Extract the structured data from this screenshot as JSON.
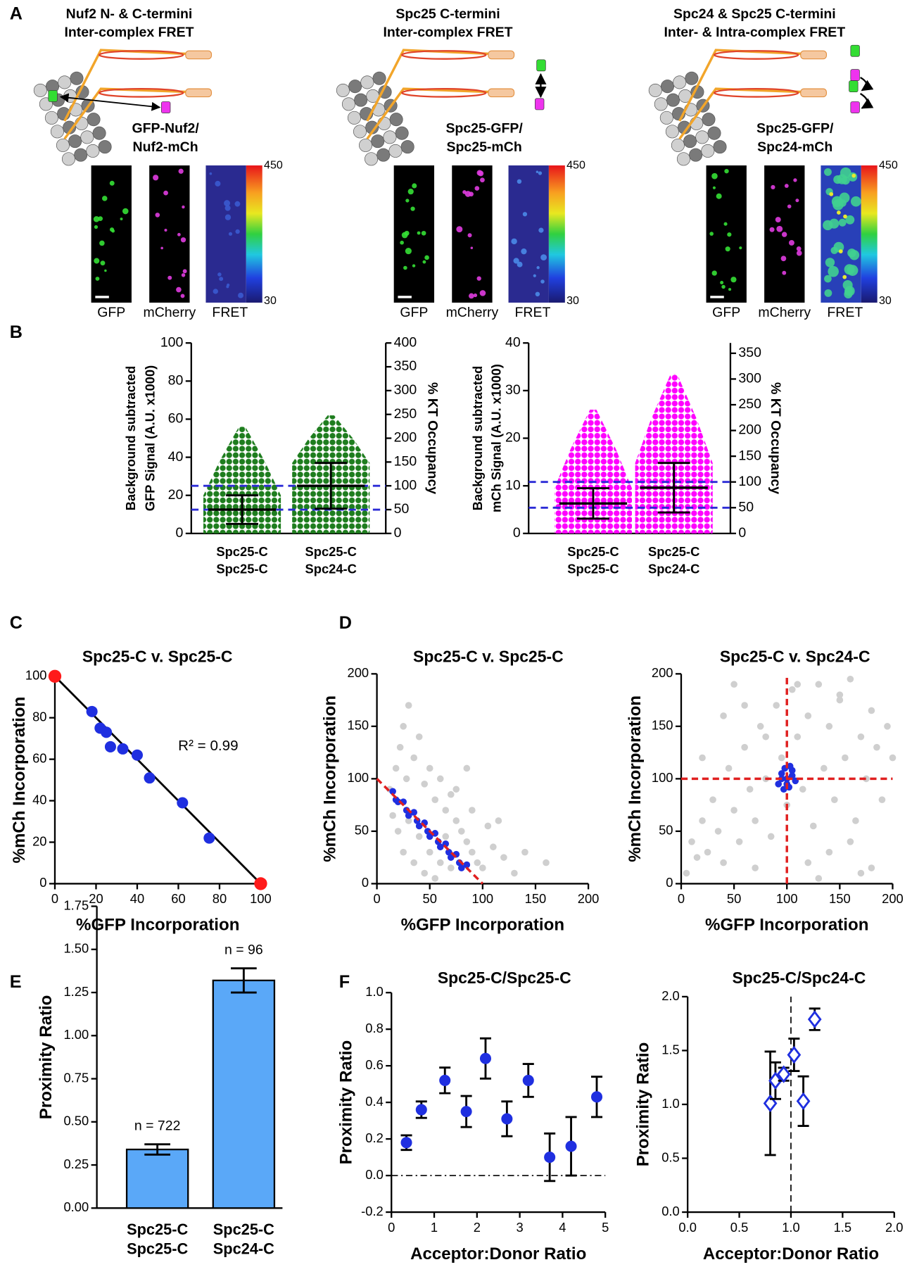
{
  "panel_labels": [
    "A",
    "B",
    "C",
    "D",
    "E",
    "F"
  ],
  "panel_a": [
    {
      "title": [
        "Nuf2 N- & C-termini",
        "Inter-complex FRET"
      ],
      "construct": [
        "GFP-Nuf2/",
        "Nuf2-mCh"
      ],
      "channels": [
        "GFP",
        "mCherry",
        "FRET"
      ],
      "colorbar": [
        30,
        450
      ]
    },
    {
      "title": [
        "Spc25 C-termini",
        "Inter-complex FRET"
      ],
      "construct": [
        "Spc25-GFP/",
        "Spc25-mCh"
      ],
      "channels": [
        "GFP",
        "mCherry",
        "FRET"
      ],
      "colorbar": [
        30,
        450
      ]
    },
    {
      "title": [
        "Spc24 & Spc25 C-termini",
        "Inter- & Intra-complex FRET"
      ],
      "construct": [
        "Spc25-GFP/",
        "Spc24-mCh"
      ],
      "channels": [
        "GFP",
        "mCherry",
        "FRET"
      ],
      "colorbar": [
        30,
        450
      ]
    }
  ],
  "chart_data": [
    {
      "type": "strip",
      "ylabel": [
        "Background subtracted",
        "GFP Signal (A.U. x1000)"
      ],
      "y2label": "% KT Occupancy",
      "categories": [
        [
          "Spc25-C",
          "Spc25-C"
        ],
        [
          "Spc25-C",
          "Spc24-C"
        ]
      ],
      "color": "#1e7d1e",
      "mean": [
        12.5,
        25
      ],
      "error": [
        7.5,
        12
      ],
      "max": [
        56,
        62
      ],
      "ylim": [
        0,
        100
      ],
      "yticks": [
        0,
        20,
        40,
        60,
        80,
        100
      ],
      "y2lim": [
        0,
        400
      ],
      "y2ticks": [
        0,
        50,
        100,
        150,
        200,
        250,
        300,
        350,
        400
      ],
      "hlines": [
        {
          "axis": "y2",
          "value": 50,
          "color": "#2b2bd6"
        },
        {
          "axis": "y2",
          "value": 100,
          "color": "#2b2bd6"
        }
      ]
    },
    {
      "type": "strip",
      "ylabel": [
        "Background subtracted",
        "mCh Signal (A.U. x1000)"
      ],
      "y2label": "% KT Occupancy",
      "categories": [
        [
          "Spc25-C",
          "Spc25-C"
        ],
        [
          "Spc25-C",
          "Spc24-C"
        ]
      ],
      "color": "#ff00ff",
      "mean": [
        6.3,
        9.6
      ],
      "error": [
        3.2,
        5.2
      ],
      "max": [
        26,
        33.5
      ],
      "ylim": [
        0,
        40
      ],
      "yticks": [
        0,
        10,
        20,
        30,
        40
      ],
      "y2lim": [
        0,
        370
      ],
      "y2ticks": [
        0,
        50,
        100,
        150,
        200,
        250,
        300,
        350
      ],
      "hlines": [
        {
          "axis": "y2",
          "value": 50,
          "color": "#2b2bd6"
        },
        {
          "axis": "y2",
          "value": 100,
          "color": "#2b2bd6"
        }
      ]
    },
    {
      "type": "scatter",
      "title": "Spc25-C v. Spc25-C",
      "xlabel": "%GFP Incorporation",
      "ylabel": "%mCh Incorporation",
      "xlim": [
        0,
        100
      ],
      "ylim": [
        0,
        100
      ],
      "xticks": [
        0,
        20,
        40,
        60,
        80,
        100
      ],
      "yticks": [
        0,
        20,
        40,
        60,
        80,
        100
      ],
      "annotation": "R² = 0.99",
      "lines": [
        {
          "x": [
            0,
            100
          ],
          "values": [
            100,
            0
          ],
          "color": "#000000",
          "style": "solid"
        }
      ],
      "series": [
        {
          "color": "#1f2fe0",
          "marker": "circle",
          "x": [
            18,
            22,
            25,
            27,
            33,
            40,
            46,
            62,
            75
          ],
          "values": [
            83,
            75,
            73,
            66,
            65,
            62,
            51,
            39,
            22
          ]
        },
        {
          "color": "#ff1a1a",
          "marker": "circle",
          "x": [
            0,
            100
          ],
          "values": [
            100,
            0
          ]
        }
      ]
    },
    {
      "type": "scatter",
      "title": "Spc25-C v. Spc25-C",
      "xlabel": "%GFP Incorporation",
      "ylabel": "%mCh Incorporation",
      "xlim": [
        0,
        200
      ],
      "ylim": [
        0,
        200
      ],
      "xticks": [
        0,
        50,
        100,
        150,
        200
      ],
      "yticks": [
        0,
        50,
        100,
        150,
        200
      ],
      "lines": [
        {
          "x": [
            0,
            100
          ],
          "values": [
            100,
            0
          ],
          "color": "#e02020",
          "style": "dashed"
        }
      ],
      "series": [
        {
          "color": "#cfcfcf",
          "marker": "dot",
          "x": [
            12,
            18,
            22,
            25,
            30,
            28,
            35,
            40,
            45,
            50,
            55,
            60,
            65,
            70,
            75,
            80,
            85,
            90,
            95,
            100,
            110,
            120,
            130,
            140,
            160,
            30,
            40,
            50,
            60,
            70,
            20,
            25,
            35,
            45,
            55,
            65,
            75,
            90,
            105,
            85,
            115,
            15
          ],
          "values": [
            90,
            110,
            130,
            150,
            170,
            100,
            120,
            140,
            95,
            110,
            80,
            100,
            70,
            85,
            60,
            50,
            40,
            30,
            20,
            15,
            35,
            25,
            10,
            30,
            20,
            60,
            45,
            30,
            20,
            15,
            50,
            30,
            20,
            10,
            5,
            45,
            90,
            70,
            55,
            110,
            60,
            65
          ]
        },
        {
          "color": "#1f2fe0",
          "marker": "dot",
          "x": [
            15,
            18,
            20,
            25,
            28,
            30,
            35,
            38,
            40,
            45,
            48,
            50,
            55,
            58,
            60,
            65,
            68,
            70,
            75,
            78,
            80,
            85
          ],
          "values": [
            88,
            80,
            78,
            78,
            70,
            65,
            68,
            60,
            55,
            58,
            50,
            45,
            48,
            40,
            35,
            38,
            30,
            25,
            28,
            20,
            15,
            18
          ]
        }
      ]
    },
    {
      "type": "scatter",
      "title": "Spc25-C v. Spc24-C",
      "xlabel": "%GFP Incorporation",
      "ylabel": "%mCh Incorporation",
      "xlim": [
        0,
        200
      ],
      "ylim": [
        0,
        200
      ],
      "xticks": [
        0,
        50,
        100,
        150,
        200
      ],
      "yticks": [
        0,
        50,
        100,
        150,
        200
      ],
      "lines": [
        {
          "x": [
            100,
            100
          ],
          "values": [
            0,
            200
          ],
          "color": "#e02020",
          "style": "dashed"
        },
        {
          "x": [
            0,
            200
          ],
          "values": [
            100,
            100
          ],
          "color": "#e02020",
          "style": "dashed"
        }
      ],
      "series": [
        {
          "color": "#cfcfcf",
          "marker": "dot",
          "x": [
            5,
            10,
            15,
            20,
            25,
            30,
            35,
            40,
            45,
            50,
            55,
            60,
            65,
            70,
            75,
            80,
            85,
            90,
            95,
            100,
            105,
            110,
            115,
            120,
            125,
            130,
            135,
            140,
            145,
            150,
            155,
            160,
            165,
            170,
            175,
            180,
            185,
            190,
            195,
            200,
            20,
            40,
            60,
            80,
            120,
            140,
            160,
            180,
            50,
            70,
            110,
            130,
            150,
            170
          ],
          "values": [
            10,
            40,
            25,
            60,
            30,
            80,
            50,
            20,
            110,
            70,
            40,
            130,
            90,
            60,
            150,
            100,
            45,
            170,
            120,
            75,
            185,
            140,
            90,
            160,
            55,
            190,
            110,
            150,
            80,
            175,
            120,
            195,
            60,
            140,
            100,
            165,
            130,
            80,
            150,
            120,
            120,
            160,
            170,
            140,
            20,
            30,
            40,
            15,
            190,
            15,
            190,
            5,
            180,
            10
          ]
        },
        {
          "color": "#1f2fe0",
          "marker": "dot",
          "x": [
            92,
            95,
            98,
            100,
            102,
            105,
            108,
            95,
            100,
            105,
            97,
            103
          ],
          "values": [
            95,
            105,
            110,
            100,
            92,
            108,
            98,
            100,
            95,
            103,
            90,
            112
          ]
        }
      ]
    },
    {
      "type": "bar",
      "ylabel": "Proximity Ratio",
      "categories": [
        [
          "Spc25-C",
          "Spc25-C"
        ],
        [
          "Spc25-C",
          "Spc24-C"
        ]
      ],
      "values": [
        0.34,
        1.32
      ],
      "error": [
        0.03,
        0.07
      ],
      "annotations": [
        "n = 722",
        "n = 96"
      ],
      "color": "#5aa8f8",
      "ylim": [
        0,
        1.75
      ],
      "yticks": [
        {
          "value": 0,
          "label": "0.00"
        },
        0.25,
        {
          "value": 0.5,
          "label": "0.50"
        },
        0.75,
        {
          "value": 1,
          "label": "1.00"
        },
        1.25,
        {
          "value": 1.5,
          "label": "1.50"
        },
        1.75
      ]
    },
    {
      "type": "scatter",
      "title": "Spc25-C/Spc25-C",
      "xlabel": "Acceptor:Donor Ratio",
      "ylabel": "Proximity Ratio",
      "xlim": [
        0,
        5
      ],
      "ylim": [
        -0.2,
        1.0
      ],
      "xticks": [
        0,
        1,
        2,
        3,
        4,
        5
      ],
      "yticks": [
        -0.2,
        {
          "value": 0,
          "label": "0.0"
        },
        0.2,
        0.4,
        0.6,
        0.8,
        {
          "value": 1,
          "label": "1.0"
        }
      ],
      "hlines": [
        {
          "value": 0,
          "style": "dash-dot"
        }
      ],
      "series": [
        {
          "color": "#1f2fe0",
          "marker": "circle",
          "x": [
            0.35,
            0.7,
            1.25,
            1.75,
            2.2,
            2.7,
            3.2,
            3.7,
            4.2,
            4.8
          ],
          "values": [
            0.18,
            0.36,
            0.52,
            0.35,
            0.64,
            0.31,
            0.52,
            0.1,
            0.16,
            0.43
          ],
          "error": [
            0.04,
            0.045,
            0.07,
            0.085,
            0.11,
            0.095,
            0.09,
            0.13,
            0.16,
            0.11
          ]
        }
      ]
    },
    {
      "type": "scatter",
      "title": "Spc25-C/Spc24-C",
      "xlabel": "Acceptor:Donor Ratio",
      "ylabel": "Proximity Ratio",
      "xlim": [
        0,
        2
      ],
      "ylim": [
        0,
        2
      ],
      "xticks": [
        {
          "value": 0,
          "label": "0.0"
        },
        0.5,
        {
          "value": 1,
          "label": "1.0"
        },
        1.5,
        {
          "value": 2,
          "label": "2.0"
        }
      ],
      "yticks": [
        {
          "value": 0,
          "label": "0.0"
        },
        0.5,
        {
          "value": 1,
          "label": "1.0"
        },
        1.5,
        {
          "value": 2,
          "label": "2.0"
        }
      ],
      "vlines": [
        {
          "value": 1,
          "style": "dashed"
        }
      ],
      "series": [
        {
          "color": "#1f2fe0",
          "marker": "diamond-open",
          "x": [
            0.8,
            0.85,
            0.93,
            1.03,
            1.12,
            1.23
          ],
          "values": [
            1.01,
            1.22,
            1.28,
            1.46,
            1.03,
            1.79
          ],
          "error": [
            0.48,
            0.17,
            0.06,
            0.15,
            0.23,
            0.1
          ]
        }
      ]
    }
  ]
}
